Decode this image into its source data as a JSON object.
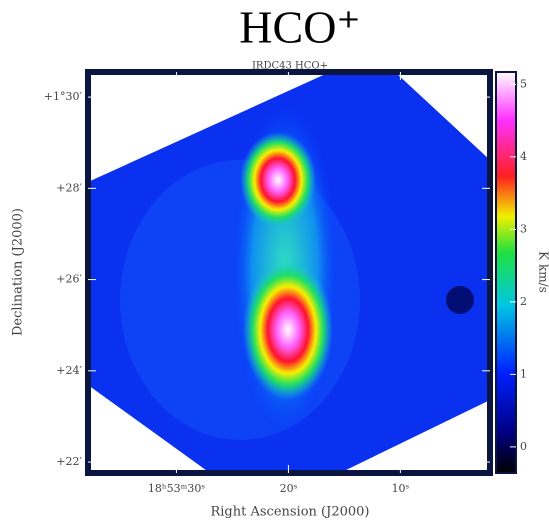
{
  "chart_data": {
    "type": "image-map",
    "title": "HCO⁺",
    "subtitle": "IRDC43 HCO+",
    "x_label": "Right Ascension (J2000)",
    "y_label": "Declination (J2000)",
    "colorbar_label": "K km/s",
    "xlim": [
      37.9,
      2.0
    ],
    "xticks": [
      {
        "value": 30,
        "label": "18ʰ53ᵐ30ˢ"
      },
      {
        "value": 20,
        "label": "20ˢ"
      },
      {
        "value": 10,
        "label": "10ˢ"
      }
    ],
    "ylim": [
      81.76,
      90.55
    ],
    "yticks": [
      {
        "value": 90,
        "label": "+1°30′"
      },
      {
        "value": 88,
        "label": "+28′"
      },
      {
        "value": 86,
        "label": "+26′"
      },
      {
        "value": 84,
        "label": "+24′"
      },
      {
        "value": 82,
        "label": "+22′"
      }
    ],
    "clim": [
      -0.36,
      5.17
    ],
    "cticks": [
      0,
      1,
      2,
      3,
      4,
      5
    ]
  }
}
